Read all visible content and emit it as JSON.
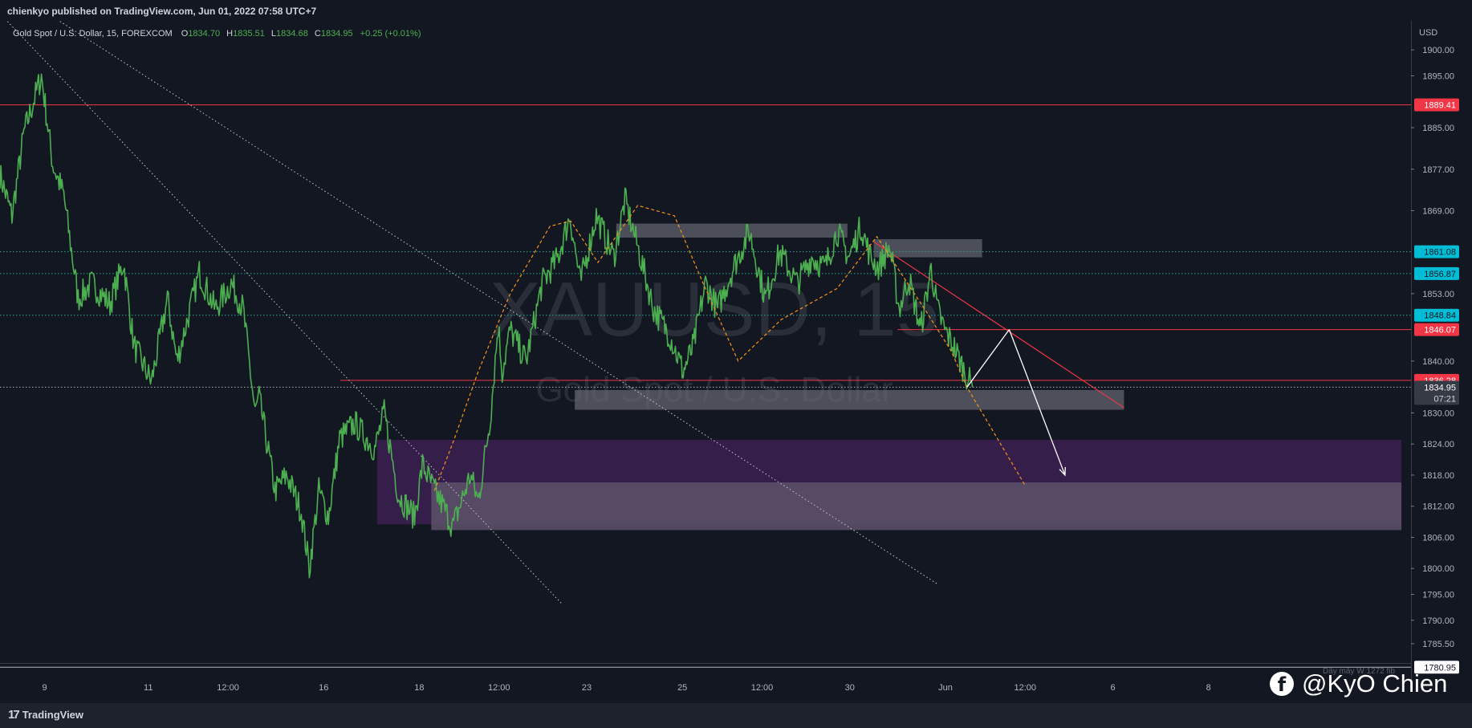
{
  "publisher": "chienkyo published on TradingView.com, Jun 01, 2022 07:58 UTC+7",
  "symbol": {
    "name": "Gold Spot / U.S. Dollar, 15, FOREXCOM",
    "open_label": "O",
    "open": "1834.70",
    "high_label": "H",
    "high": "1835.51",
    "low_label": "L",
    "low": "1834.68",
    "close_label": "C",
    "close": "1834.95",
    "change": "+0.25 (+0.01%)"
  },
  "watermark": {
    "ticker": "XAUUSD, 15",
    "description": "Gold Spot / U.S. Dollar"
  },
  "footer": {
    "brand": "TradingView",
    "social_handle": "@KyO Chien",
    "scale_note": "Dây mây W 1272 fib"
  },
  "colors": {
    "background": "#131722",
    "candle": "#4caf50",
    "resistance": "#f23645",
    "level_marker": "#22ab94",
    "zone_purple": "#3a1f4f",
    "zone_grey": "#4d4f5c"
  },
  "chart_data": {
    "type": "line",
    "symbol": "XAUUSD",
    "timeframe": "15",
    "y_unit": "USD",
    "ylim": [
      1780.95,
      1902
    ],
    "y_ticks": [
      1900.0,
      1895.0,
      1885.0,
      1877.0,
      1869.0,
      1853.0,
      1840.0,
      1830.0,
      1824.0,
      1818.0,
      1812.0,
      1806.0,
      1800.0,
      1795.0,
      1790.0,
      1785.5
    ],
    "y_tick_labels": [
      "1900.00",
      "1895.00",
      "1885.00",
      "1877.00",
      "1869.00",
      "1853.00",
      "1840.00",
      "1830.00",
      "1824.00",
      "1818.00",
      "1812.00",
      "1806.00",
      "1800.00",
      "1795.00",
      "1790.00",
      "1785.50"
    ],
    "x_tick_labels": [
      "9",
      "11",
      "12:00",
      "16",
      "18",
      "12:00",
      "23",
      "25",
      "12:00",
      "30",
      "Jun",
      "12:00",
      "6",
      "8"
    ],
    "x_tick_index": [
      56,
      186,
      286,
      406,
      526,
      626,
      736,
      856,
      956,
      1066,
      1186,
      1286,
      1396,
      1516
    ],
    "x_domain": [
      0,
      1770
    ],
    "price_index": [
      0,
      15,
      30,
      52,
      66,
      80,
      98,
      115,
      138,
      155,
      168,
      190,
      210,
      222,
      250,
      270,
      290,
      305,
      320,
      325,
      345,
      360,
      378,
      388,
      400,
      412,
      426,
      445,
      470,
      482,
      500,
      520,
      530,
      545,
      556,
      568,
      590,
      600,
      615,
      625,
      630,
      640,
      660,
      680,
      700,
      715,
      728,
      748,
      770,
      784,
      800,
      820,
      840,
      857,
      870,
      885,
      900,
      920,
      940,
      960,
      978,
      1000,
      1018,
      1035,
      1050,
      1065,
      1080,
      1092,
      1102,
      1116,
      1128,
      1140,
      1155,
      1168,
      1176,
      1185,
      1196,
      1210,
      1220
    ],
    "price": [
      1876,
      1868,
      1884,
      1895,
      1878,
      1872,
      1852,
      1855,
      1851,
      1859,
      1843,
      1836,
      1852,
      1840,
      1857,
      1850,
      1855,
      1850,
      1830,
      1833,
      1815,
      1818,
      1811,
      1800,
      1815,
      1810,
      1825,
      1828,
      1823,
      1830,
      1814,
      1810,
      1820,
      1815,
      1812,
      1808,
      1818,
      1813,
      1829,
      1847,
      1838,
      1846,
      1840,
      1855,
      1860,
      1868,
      1855,
      1868,
      1860,
      1871,
      1862,
      1850,
      1845,
      1838,
      1843,
      1855,
      1850,
      1858,
      1865,
      1852,
      1861,
      1855,
      1860,
      1858,
      1865,
      1860,
      1866,
      1860,
      1858,
      1862,
      1850,
      1856,
      1846,
      1858,
      1850,
      1846,
      1843,
      1838,
      1834.95
    ],
    "forecast": [
      {
        "x": [
          1213,
          1266
        ],
        "y": [
          1834.95,
          1846.07
        ]
      },
      {
        "x": [
          1266,
          1336
        ],
        "y": [
          1846.07,
          1818
        ]
      }
    ],
    "orange_path": {
      "x": [
        545,
        570,
        600,
        640,
        690,
        716,
        750,
        800,
        846,
        882,
        926,
        980,
        1050,
        1100,
        1160,
        1193,
        1213,
        1286
      ],
      "y": [
        1815,
        1825,
        1838,
        1853,
        1866,
        1867,
        1859,
        1870,
        1868,
        1855,
        1840,
        1848,
        1854,
        1864,
        1850,
        1842,
        1834.95,
        1816
      ]
    },
    "price_levels": [
      {
        "value": 1889.41,
        "label": "1889.41",
        "style": "solid",
        "color": "#f23645",
        "x_from": 0
      },
      {
        "value": 1861.08,
        "label": "1861.08",
        "style": "dotted",
        "color": "#22ab94",
        "x_from": 0
      },
      {
        "value": 1856.87,
        "label": "1856.87",
        "style": "dotted",
        "color": "#22ab94",
        "x_from": 0
      },
      {
        "value": 1848.84,
        "label": "1848.84",
        "style": "dotted",
        "color": "#22ab94",
        "x_from": 0
      },
      {
        "value": 1846.07,
        "label": "1846.07",
        "style": "solid",
        "color": "#f23645",
        "x_from": 1126
      },
      {
        "value": 1836.28,
        "label": "1836.28",
        "style": "solid",
        "color": "#f23645",
        "x_from": 427
      },
      {
        "value": 1834.95,
        "label": "1834.95",
        "style": "dotted",
        "color": "#b2b5be",
        "x_from": 0
      },
      {
        "value": 1780.95,
        "label": "1780.95",
        "style": "solid",
        "color": "#b2b5be",
        "x_from": 0
      }
    ],
    "current_price": {
      "value": "1834.95",
      "countdown": "07:21"
    },
    "trendlines": [
      {
        "x": [
          0,
          706
        ],
        "y": [
          1907,
          1793
        ]
      },
      {
        "x": [
          60,
          1176
        ],
        "y": [
          1907,
          1797
        ]
      },
      {
        "x": [
          1096,
          1410
        ],
        "y": [
          1863,
          1831
        ]
      }
    ],
    "zones": [
      {
        "x": [
          773,
          1063
        ],
        "y": [
          1866.5,
          1863.8
        ],
        "color": "#5b5e68",
        "opacity": 0.8
      },
      {
        "x": [
          1096,
          1232
        ],
        "y": [
          1863.5,
          1860
        ],
        "color": "#5b5e68",
        "opacity": 0.8
      },
      {
        "x": [
          721,
          1410
        ],
        "y": [
          1834.4,
          1830.6
        ],
        "color": "#676a73",
        "opacity": 0.7
      },
      {
        "x": [
          473,
          1758
        ],
        "y": [
          1824.8,
          1808.5
        ],
        "color": "#3a1f4f",
        "opacity": 0.9
      },
      {
        "x": [
          541,
          1758
        ],
        "y": [
          1816.6,
          1807.4
        ],
        "color": "#5a4f68",
        "opacity": 0.9
      }
    ]
  }
}
